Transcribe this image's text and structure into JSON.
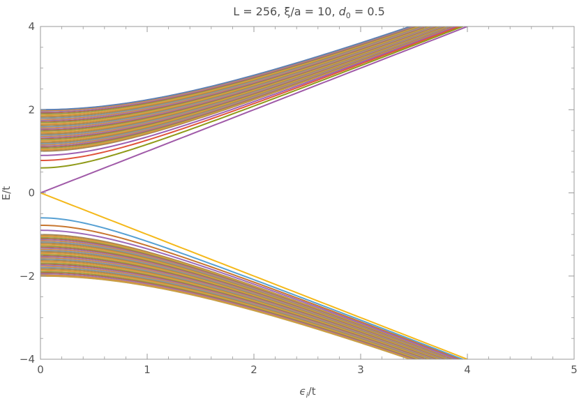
{
  "chart_data": {
    "type": "line",
    "title": "L = 256, ξ/a = 10, d₀ = 0.5",
    "title_parts": {
      "main": "L = 256, ξ/a = 10, ",
      "var": "d",
      "sub": "0",
      "tail": " = 0.5"
    },
    "xlabel": "εᵢ/t",
    "xlabel_parts": {
      "var": "ϵ",
      "sub": "i",
      "tail": "/t"
    },
    "ylabel": "E/t",
    "xlim": [
      0,
      5
    ],
    "ylim": [
      -4,
      4
    ],
    "x_ticks": [
      0,
      1,
      2,
      3,
      4,
      5
    ],
    "x_tick_labels": [
      "0",
      "1",
      "2",
      "3",
      "4",
      "5"
    ],
    "y_ticks": [
      -4,
      -2,
      0,
      2,
      4
    ],
    "y_tick_labels": [
      "−4",
      "−2",
      "0",
      "2",
      "4"
    ],
    "grid": false,
    "legend": "none",
    "band_description": "Continuum of eigenvalues E = ±sqrt(ε² + Δ²) on 0 ≤ ε ≤ 4, Δ from 1 to 2",
    "upper_band": {
      "delta_min": 1.0,
      "delta_max": 2.0,
      "count": 40,
      "x_range": [
        0,
        4
      ]
    },
    "lower_band": {
      "delta_min": 1.0,
      "delta_max": 2.0,
      "count": 40,
      "x_range": [
        0,
        4
      ]
    },
    "band_colors": [
      "#a0885a",
      "#c89040",
      "#e0a040",
      "#8fa050",
      "#b5654a",
      "#9b7ab8",
      "#d88a40",
      "#7a9bb8"
    ],
    "series": [
      {
        "name": "upper-edge",
        "color": "#5e81b5",
        "delta": 2.0,
        "sign": 1,
        "x_range": [
          0,
          4
        ]
      },
      {
        "name": "bound-state-1",
        "color": "#9d5fb1",
        "delta": 0.9,
        "sign": 1,
        "x_range": [
          0,
          4
        ]
      },
      {
        "name": "bound-state-2",
        "color": "#e0543c",
        "delta": 0.78,
        "sign": 1,
        "x_range": [
          0,
          4
        ]
      },
      {
        "name": "bound-state-3",
        "color": "#8f9a18",
        "delta": 0.6,
        "sign": 1,
        "x_range": [
          0,
          4
        ]
      },
      {
        "name": "zero-mode-upper",
        "color": "#a05aa8",
        "delta": 0.0,
        "sign": 1,
        "x_range": [
          0,
          4
        ]
      },
      {
        "name": "zero-mode-lower",
        "color": "#f4b81a",
        "delta": 0.0,
        "sign": -1,
        "x_range": [
          0,
          4
        ]
      },
      {
        "name": "bound-state-4",
        "color": "#56a0d3",
        "delta": 0.6,
        "sign": -1,
        "x_range": [
          0,
          4
        ]
      },
      {
        "name": "bound-state-5",
        "color": "#c8762e",
        "delta": 0.78,
        "sign": -1,
        "x_range": [
          0,
          4
        ]
      },
      {
        "name": "bound-state-6",
        "color": "#9d6ab8",
        "delta": 0.9,
        "sign": -1,
        "x_range": [
          0,
          4
        ]
      },
      {
        "name": "lower-edge",
        "color": "#c9a046",
        "delta": 2.0,
        "sign": -1,
        "x_range": [
          0,
          4
        ]
      }
    ],
    "styles": {
      "axis_color": "#999999",
      "background": "#ffffff"
    }
  }
}
